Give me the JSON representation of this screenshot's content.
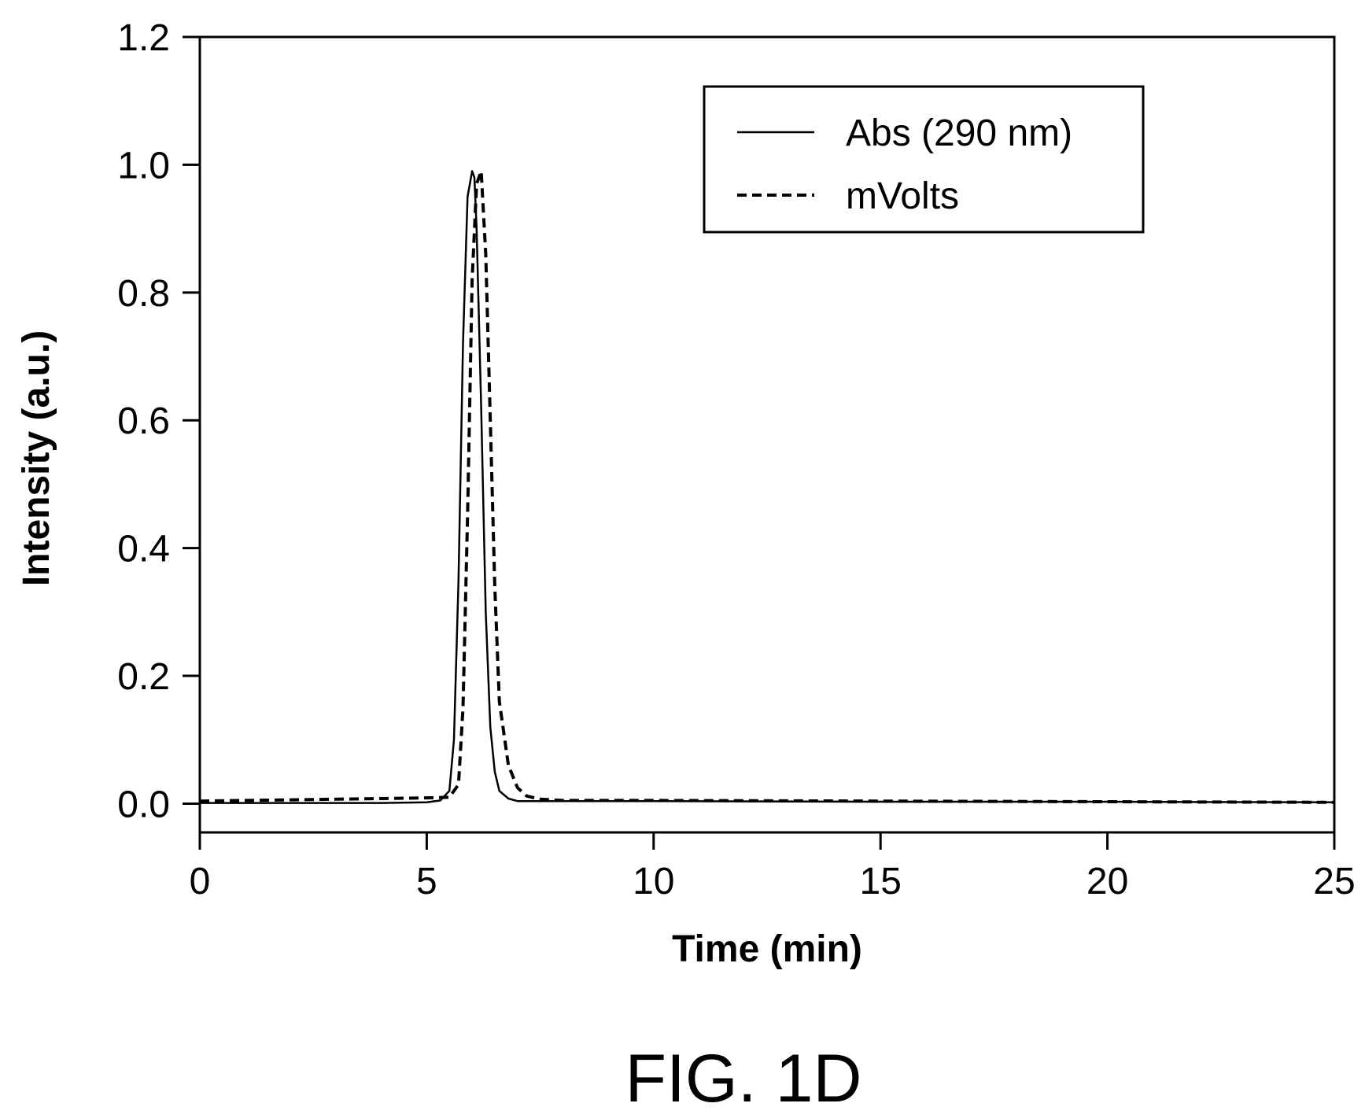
{
  "figure": {
    "caption": "FIG. 1D"
  },
  "chart_data": {
    "type": "line",
    "xlabel": "Time (min)",
    "ylabel": "Intensity (a.u.)",
    "xlim": [
      0,
      25
    ],
    "ylim": [
      -0.045,
      1.2
    ],
    "x_ticks": [
      "0",
      "5",
      "10",
      "15",
      "20",
      "25"
    ],
    "y_ticks": [
      "0.0",
      "0.2",
      "0.4",
      "0.6",
      "0.8",
      "1.0",
      "1.2"
    ],
    "grid": false,
    "legend_position": "top-right",
    "series": [
      {
        "name": "Abs (290 nm)",
        "style": "solid",
        "color": "#000000",
        "x": [
          0,
          1,
          2,
          3,
          4,
          5,
          5.3,
          5.5,
          5.6,
          5.7,
          5.8,
          5.9,
          6.0,
          6.05,
          6.1,
          6.2,
          6.3,
          6.4,
          6.5,
          6.6,
          6.8,
          7.0,
          8,
          10,
          15,
          20,
          25
        ],
        "y": [
          0.001,
          0.001,
          0.001,
          0.001,
          0.001,
          0.002,
          0.005,
          0.02,
          0.1,
          0.35,
          0.72,
          0.95,
          0.99,
          0.98,
          0.9,
          0.62,
          0.3,
          0.12,
          0.05,
          0.02,
          0.008,
          0.004,
          0.004,
          0.004,
          0.003,
          0.003,
          0.002
        ]
      },
      {
        "name": "mVolts",
        "style": "dashed",
        "color": "#000000",
        "x": [
          0,
          1,
          2,
          3,
          4,
          5,
          5.5,
          5.7,
          5.8,
          5.9,
          6.0,
          6.1,
          6.2,
          6.3,
          6.4,
          6.5,
          6.6,
          6.8,
          7.0,
          7.2,
          7.5,
          8,
          10,
          15,
          20,
          25
        ],
        "y": [
          0.004,
          0.005,
          0.006,
          0.007,
          0.008,
          0.009,
          0.01,
          0.03,
          0.15,
          0.45,
          0.82,
          0.97,
          0.99,
          0.86,
          0.6,
          0.34,
          0.16,
          0.06,
          0.025,
          0.012,
          0.007,
          0.005,
          0.005,
          0.004,
          0.003,
          0.002
        ]
      }
    ]
  }
}
